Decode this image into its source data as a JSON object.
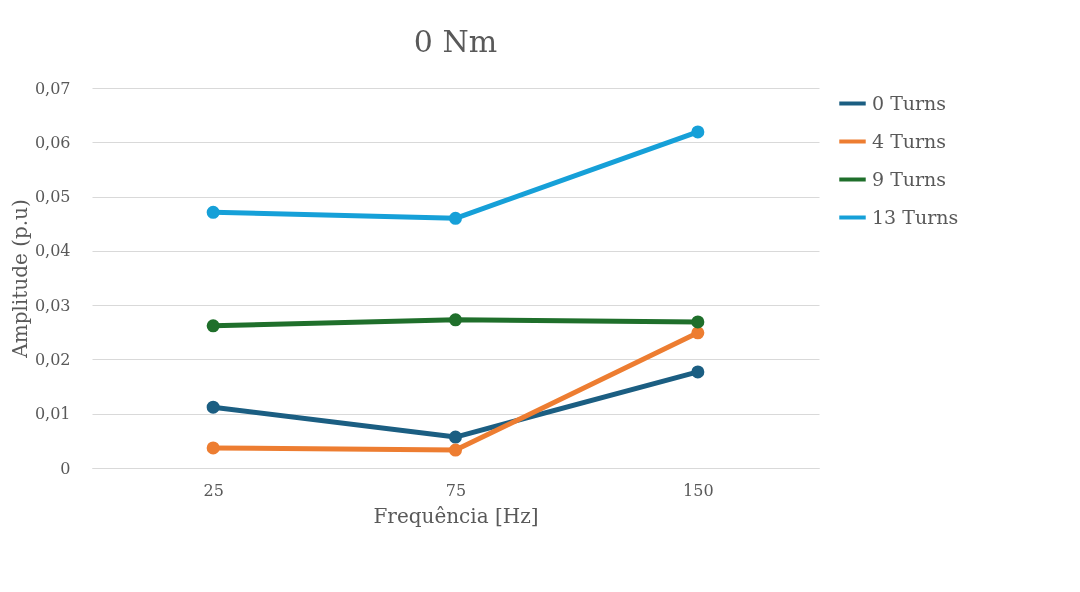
{
  "chart_data": {
    "type": "line",
    "title": "0 Nm",
    "xlabel": "Frequência [Hz]",
    "ylabel": "Amplitude (p.u)",
    "categories": [
      "25",
      "75",
      "150"
    ],
    "series": [
      {
        "name": "0 Turns",
        "color": "#1b5e82",
        "values": [
          0.0112,
          0.0057,
          0.0177
        ]
      },
      {
        "name": "4 Turns",
        "color": "#ed7d31",
        "values": [
          0.0037,
          0.0033,
          0.0249
        ]
      },
      {
        "name": "9 Turns",
        "color": "#1f6f2b",
        "values": [
          0.0262,
          0.0273,
          0.0269
        ]
      },
      {
        "name": "13 Turns",
        "color": "#16a0d8",
        "values": [
          0.0471,
          0.046,
          0.0619
        ]
      }
    ],
    "ylim": [
      0,
      0.07
    ],
    "yticks": [
      {
        "value": 0,
        "label": "0"
      },
      {
        "value": 0.01,
        "label": "0,01"
      },
      {
        "value": 0.02,
        "label": "0,02"
      },
      {
        "value": 0.03,
        "label": "0,03"
      },
      {
        "value": 0.04,
        "label": "0,04"
      },
      {
        "value": 0.05,
        "label": "0,05"
      },
      {
        "value": 0.06,
        "label": "0,06"
      },
      {
        "value": 0.07,
        "label": "0,07"
      }
    ],
    "grid": "y",
    "legend": "right",
    "marker": "circle",
    "line_style": "solid"
  }
}
